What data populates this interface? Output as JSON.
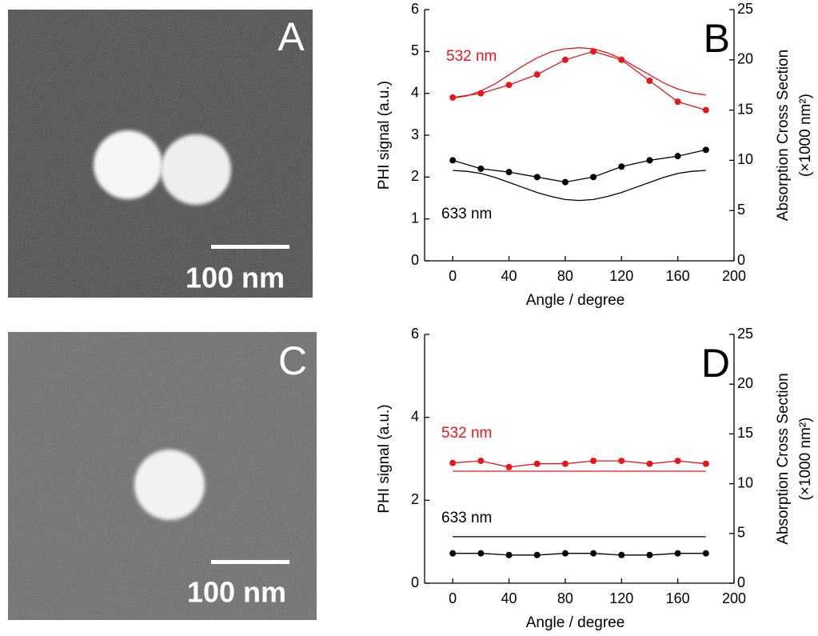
{
  "images": [
    {
      "label": "A",
      "scale_bar": "100 nm"
    },
    {
      "label": "C",
      "scale_bar": "100 nm"
    }
  ],
  "chart_data": [
    {
      "type": "line",
      "panel": "B",
      "xlabel": "Angle / degree",
      "ylabel": "PHI signal (a.u.)",
      "y2label": [
        "Absorption Cross Section",
        "(×1000 nm²)"
      ],
      "xlim": [
        -20,
        200
      ],
      "xticks": [
        0,
        40,
        80,
        120,
        160,
        200
      ],
      "ylim": [
        0,
        6
      ],
      "yticks": [
        0,
        1,
        2,
        3,
        4,
        5,
        6
      ],
      "y2lim": [
        0,
        25
      ],
      "y2ticks": [
        0,
        5,
        10,
        15,
        20,
        25
      ],
      "annotations": [
        {
          "text": "532 nm",
          "color": "#e8161b"
        },
        {
          "text": "633 nm",
          "color": "#000000"
        }
      ],
      "series": [
        {
          "color": "#e8161b",
          "markers": true,
          "x": [
            0,
            20,
            40,
            60,
            80,
            100,
            120,
            140,
            160,
            180
          ],
          "values": [
            3.9,
            4.0,
            4.2,
            4.45,
            4.8,
            5.0,
            4.8,
            4.3,
            3.8,
            3.6
          ]
        },
        {
          "color": "#000000",
          "markers": true,
          "x": [
            0,
            20,
            40,
            60,
            80,
            100,
            120,
            140,
            160,
            180
          ],
          "values": [
            2.4,
            2.2,
            2.12,
            2.0,
            1.88,
            2.0,
            2.25,
            2.4,
            2.5,
            2.65
          ]
        },
        {
          "color": "#e8161b",
          "markers": false,
          "axis": "y2",
          "x": [
            0,
            10,
            20,
            30,
            40,
            50,
            60,
            70,
            80,
            90,
            100,
            110,
            120,
            130,
            140,
            150,
            160,
            170,
            180
          ],
          "values": [
            16.2,
            16.4,
            16.9,
            17.6,
            18.5,
            19.4,
            20.2,
            20.8,
            21.1,
            21.2,
            21.1,
            20.7,
            20.1,
            19.3,
            18.5,
            17.7,
            17.1,
            16.7,
            16.5
          ]
        },
        {
          "color": "#000000",
          "markers": false,
          "axis": "y2",
          "x": [
            0,
            10,
            20,
            30,
            40,
            50,
            60,
            70,
            80,
            90,
            100,
            110,
            120,
            130,
            140,
            150,
            160,
            170,
            180
          ],
          "values": [
            9.0,
            8.9,
            8.7,
            8.3,
            7.8,
            7.3,
            6.8,
            6.4,
            6.1,
            6.0,
            6.1,
            6.4,
            6.8,
            7.3,
            7.8,
            8.3,
            8.7,
            8.9,
            9.0
          ]
        }
      ]
    },
    {
      "type": "line",
      "panel": "D",
      "xlabel": "Angle / degree",
      "ylabel": "PHI signal (a.u.)",
      "y2label": [
        "Absorption Cross Section",
        "(×1000 nm²)"
      ],
      "xlim": [
        -20,
        200
      ],
      "xticks": [
        0,
        40,
        80,
        120,
        160,
        200
      ],
      "ylim": [
        0,
        6
      ],
      "yticks": [
        0,
        2,
        4,
        6
      ],
      "y2lim": [
        0,
        25
      ],
      "y2ticks": [
        0,
        5,
        10,
        15,
        20,
        25
      ],
      "annotations": [
        {
          "text": "532 nm",
          "color": "#e8161b"
        },
        {
          "text": "633 nm",
          "color": "#000000"
        }
      ],
      "series": [
        {
          "color": "#e8161b",
          "markers": true,
          "x": [
            0,
            20,
            40,
            60,
            80,
            100,
            120,
            140,
            160,
            180
          ],
          "values": [
            2.9,
            2.95,
            2.8,
            2.88,
            2.88,
            2.95,
            2.95,
            2.88,
            2.95,
            2.88
          ]
        },
        {
          "color": "#000000",
          "markers": true,
          "x": [
            0,
            20,
            40,
            60,
            80,
            100,
            120,
            140,
            160,
            180
          ],
          "values": [
            0.72,
            0.72,
            0.68,
            0.68,
            0.72,
            0.72,
            0.68,
            0.68,
            0.72,
            0.72
          ]
        },
        {
          "color": "#e8161b",
          "markers": false,
          "axis": "y2",
          "x": [
            0,
            180
          ],
          "values": [
            11.25,
            11.25
          ]
        },
        {
          "color": "#000000",
          "markers": false,
          "axis": "y2",
          "x": [
            0,
            180
          ],
          "values": [
            4.67,
            4.67
          ]
        }
      ]
    }
  ]
}
